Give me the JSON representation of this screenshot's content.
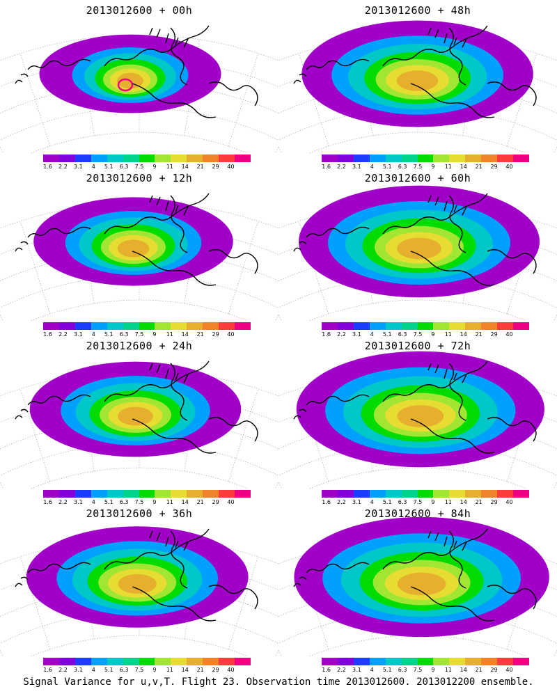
{
  "caption": "Signal Variance for u,v,T. Flight 23. Observation time 2013012600. 2013012200 ensemble.",
  "colorbar": {
    "labels": [
      "1.6",
      "2.2",
      "3.1",
      "4",
      "5.1",
      "6.3",
      "7.5",
      "9",
      "11",
      "14",
      "21",
      "29",
      "40"
    ],
    "colors": [
      "#a000c8",
      "#8200dc",
      "#1e3cff",
      "#00a0ff",
      "#00c8c8",
      "#00d28c",
      "#00dc00",
      "#a0e632",
      "#e6dc32",
      "#e6af2d",
      "#f08228",
      "#fa3c3c",
      "#f00082"
    ]
  },
  "panels": [
    {
      "title": "2013012600 + 00h",
      "level": 0.3
    },
    {
      "title": "2013012600 + 48h",
      "level": 0.72
    },
    {
      "title": "2013012600 + 12h",
      "level": 0.45
    },
    {
      "title": "2013012600 + 60h",
      "level": 0.8
    },
    {
      "title": "2013012600 + 24h",
      "level": 0.55
    },
    {
      "title": "2013012600 + 72h",
      "level": 0.86
    },
    {
      "title": "2013012600 + 36h",
      "level": 0.64
    },
    {
      "title": "2013012600 + 84h",
      "level": 0.92
    }
  ]
}
